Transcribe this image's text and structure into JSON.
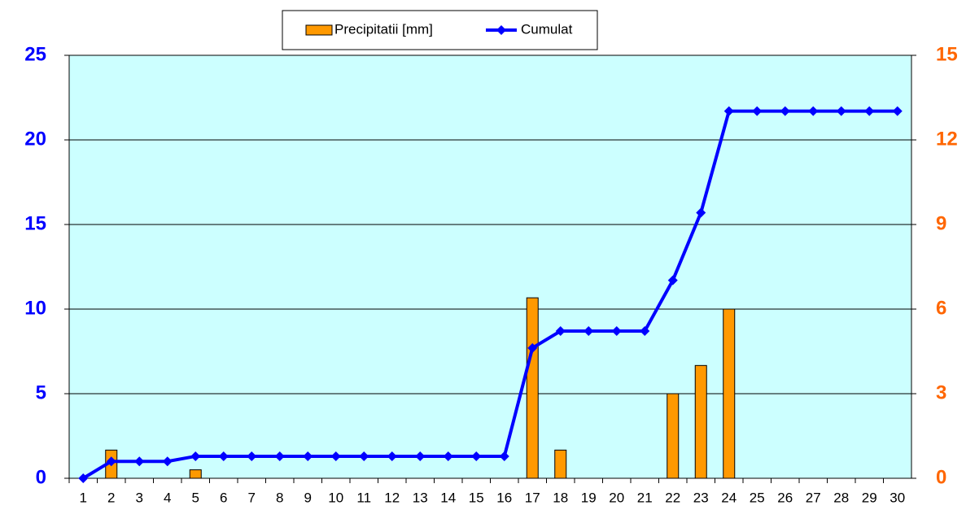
{
  "chart_data": {
    "type": "combo",
    "categories": [
      "1",
      "2",
      "3",
      "4",
      "5",
      "6",
      "7",
      "8",
      "9",
      "10",
      "11",
      "12",
      "13",
      "14",
      "15",
      "16",
      "17",
      "18",
      "19",
      "20",
      "21",
      "22",
      "23",
      "24",
      "25",
      "26",
      "27",
      "28",
      "29",
      "30"
    ],
    "series": [
      {
        "name": "Precipitatii [mm]",
        "type": "bar",
        "axis": "y2",
        "color": "#ff9900",
        "values": [
          0,
          1.0,
          0,
          0,
          0.3,
          0,
          0,
          0,
          0,
          0,
          0,
          0,
          0,
          0,
          0,
          0,
          6.4,
          1.0,
          0,
          0,
          0,
          3.0,
          4.0,
          6.0,
          0,
          0,
          0,
          0,
          0,
          0
        ]
      },
      {
        "name": "Cumulat",
        "type": "line",
        "axis": "y",
        "color": "#0000ff",
        "values": [
          0,
          1.0,
          1.0,
          1.0,
          1.3,
          1.3,
          1.3,
          1.3,
          1.3,
          1.3,
          1.3,
          1.3,
          1.3,
          1.3,
          1.3,
          1.3,
          7.7,
          8.7,
          8.7,
          8.7,
          8.7,
          11.7,
          15.7,
          21.7,
          21.7,
          21.7,
          21.7,
          21.7,
          21.7,
          21.7
        ]
      }
    ],
    "ylim": [
      0,
      25
    ],
    "yticks": [
      0,
      5,
      10,
      15,
      20,
      25
    ],
    "ycolor": "#0000ff",
    "y2lim": [
      0,
      15
    ],
    "y2ticks": [
      0,
      3,
      6,
      9,
      12,
      15
    ],
    "y2color": "#ff6600",
    "background": "#ccffff",
    "grid": true,
    "legend": "top"
  }
}
